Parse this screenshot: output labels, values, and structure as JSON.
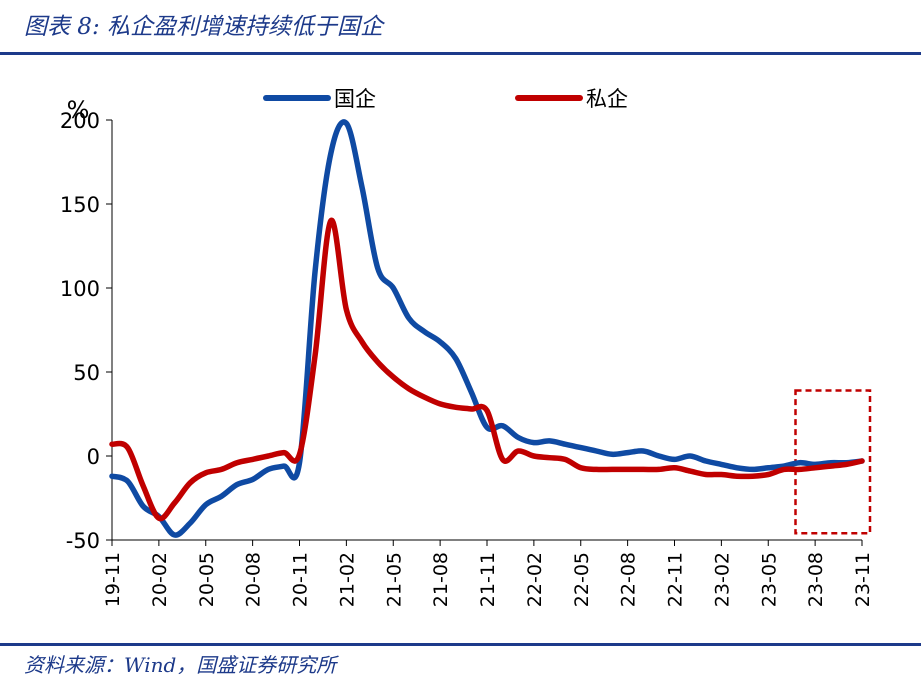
{
  "figure": {
    "title": "图表 8:  私企盈利增速持续低于国企",
    "source": "资料来源：Wind，国盛证券研究所"
  },
  "colors": {
    "title_blue": "#1d3a8a",
    "soe_line": "#0f4aa3",
    "private_line": "#c00000",
    "highlight_box": "#c00000"
  },
  "chart_data": {
    "type": "line",
    "ylabel": "%",
    "ylim": [
      -50,
      200
    ],
    "yticks": [
      -50,
      0,
      50,
      100,
      150,
      200
    ],
    "grid": false,
    "legend_position": "top",
    "x": [
      "19-11",
      "19-12",
      "20-01",
      "20-02",
      "20-03",
      "20-04",
      "20-05",
      "20-06",
      "20-07",
      "20-08",
      "20-09",
      "20-10",
      "20-11",
      "20-12",
      "21-01",
      "21-02",
      "21-03",
      "21-04",
      "21-05",
      "21-06",
      "21-07",
      "21-08",
      "21-09",
      "21-10",
      "21-11",
      "21-12",
      "22-01",
      "22-02",
      "22-03",
      "22-04",
      "22-05",
      "22-06",
      "22-07",
      "22-08",
      "22-09",
      "22-10",
      "22-11",
      "22-12",
      "23-01",
      "23-02",
      "23-03",
      "23-04",
      "23-05",
      "23-06",
      "23-07",
      "23-08",
      "23-09",
      "23-10",
      "23-11"
    ],
    "xticks": [
      "19-11",
      "20-02",
      "20-05",
      "20-08",
      "20-11",
      "21-02",
      "21-05",
      "21-08",
      "21-11",
      "22-02",
      "22-05",
      "22-08",
      "22-11",
      "23-02",
      "23-05",
      "23-08",
      "23-11"
    ],
    "series": [
      {
        "name": "国企",
        "color": "#0f4aa3",
        "values": [
          -12,
          -15,
          -30,
          -36,
          -47,
          -40,
          -29,
          -24,
          -17,
          -14,
          -8,
          -6,
          -4,
          110,
          180,
          198,
          160,
          112,
          100,
          82,
          74,
          68,
          58,
          38,
          17,
          18,
          11,
          8,
          9,
          7,
          5,
          3,
          1,
          2,
          3,
          0,
          -2,
          0,
          -3,
          -5,
          -7,
          -8,
          -7,
          -6,
          -4,
          -5,
          -4,
          -4,
          -3
        ]
      },
      {
        "name": "私企",
        "color": "#c00000",
        "values": [
          7,
          5,
          -18,
          -37,
          -28,
          -16,
          -10,
          -8,
          -4,
          -2,
          0,
          2,
          1,
          60,
          140,
          87,
          68,
          56,
          47,
          40,
          35,
          31,
          29,
          28,
          27,
          -2,
          3,
          0,
          -1,
          -2,
          -7,
          -8,
          -8,
          -8,
          -8,
          -8,
          -7,
          -9,
          -11,
          -11,
          -12,
          -12,
          -11,
          -8,
          -8,
          -7,
          -6,
          -5,
          -3
        ]
      }
    ],
    "highlight": {
      "from": "23-07",
      "to": "23-11",
      "y_range": [
        -46,
        39
      ]
    }
  }
}
